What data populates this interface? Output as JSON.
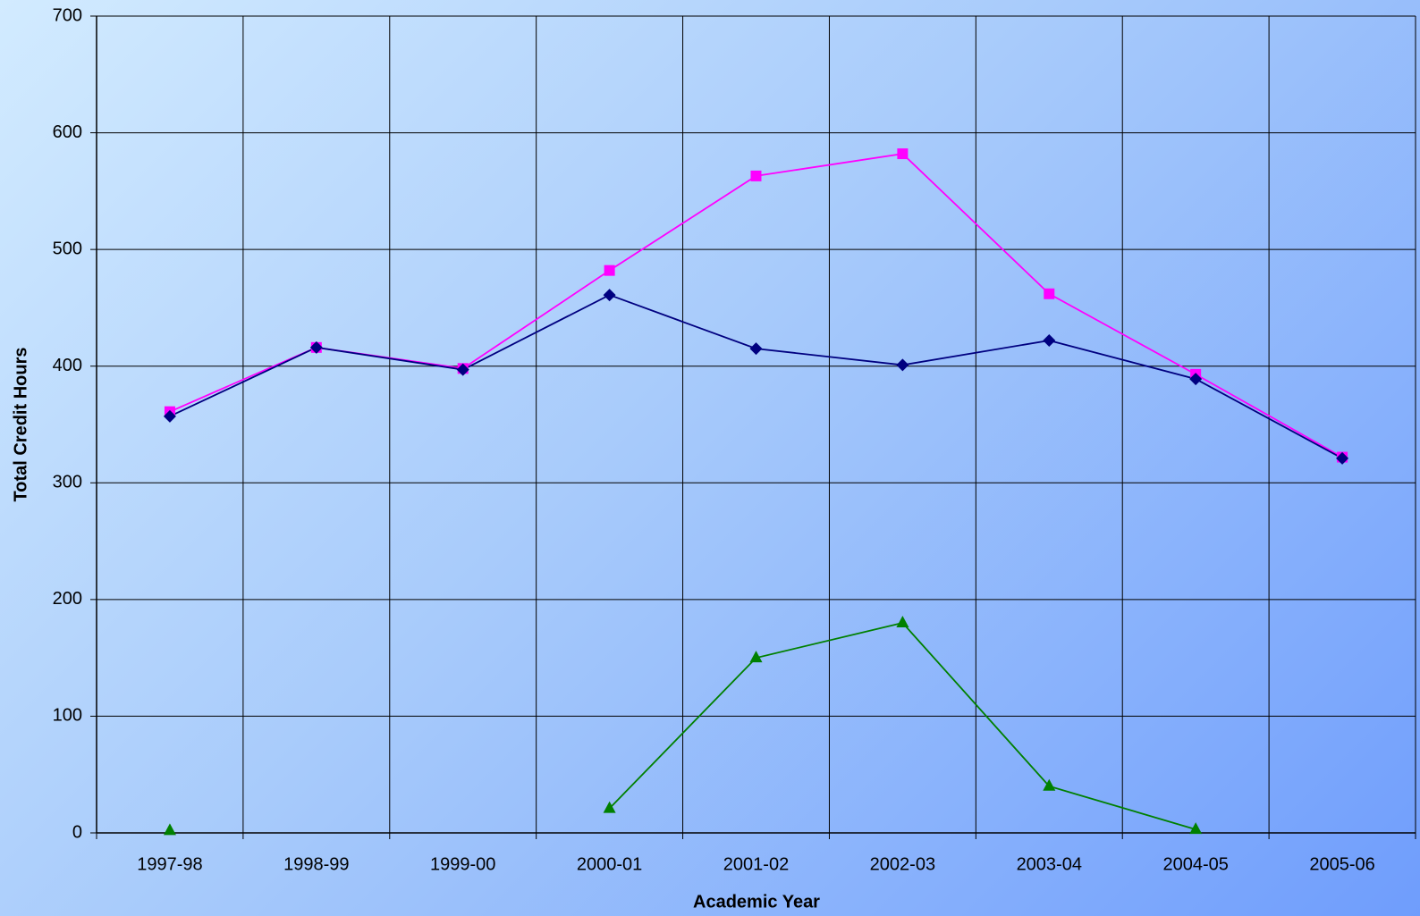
{
  "chart_data": {
    "type": "line",
    "x_label": "Academic Year",
    "y_label": "Total Credit Hours",
    "categories": [
      "1997-98",
      "1998-99",
      "1999-00",
      "2000-01",
      "2001-02",
      "2002-03",
      "2003-04",
      "2004-05",
      "2005-06"
    ],
    "series": [
      {
        "color": "#ff00ff",
        "marker": "square",
        "values": [
          361,
          416,
          398,
          482,
          563,
          582,
          462,
          393,
          322
        ]
      },
      {
        "color": "#000080",
        "marker": "diamond",
        "values": [
          357,
          416,
          397,
          461,
          415,
          401,
          422,
          389,
          321
        ]
      },
      {
        "color": "#008000",
        "marker": "triangle",
        "values": [
          2,
          null,
          null,
          21,
          150,
          180,
          40,
          3,
          null
        ]
      }
    ],
    "ylim": [
      0,
      700
    ],
    "yticks": [
      0,
      100,
      200,
      300,
      400,
      500,
      600,
      700
    ],
    "grid": true
  }
}
